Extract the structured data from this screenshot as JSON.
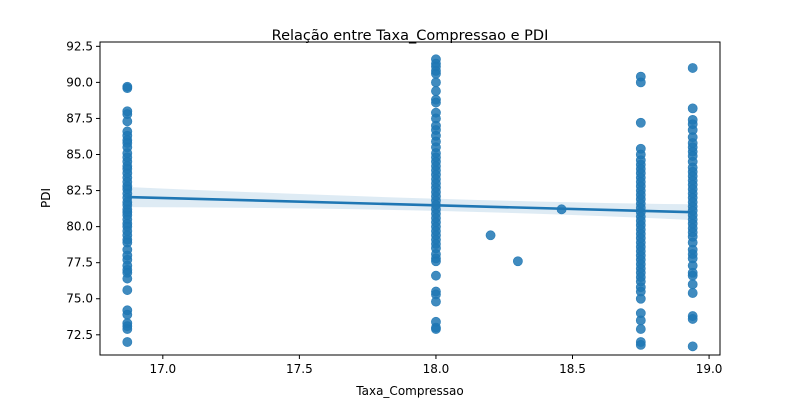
{
  "chart_data": {
    "type": "scatter",
    "title": "Relação entre Taxa_Compressao e PDI",
    "xlabel": "Taxa_Compressao",
    "ylabel": "PDI",
    "xlim": [
      16.77,
      19.04
    ],
    "ylim": [
      71.1,
      92.8
    ],
    "xticks": [
      "17.0",
      "17.5",
      "18.0",
      "18.5",
      "19.0"
    ],
    "yticks": [
      "72.5",
      "75.0",
      "77.5",
      "80.0",
      "82.5",
      "85.0",
      "87.5",
      "90.0",
      "92.5"
    ],
    "grid": false,
    "point_color": "#1f77b4",
    "regression": {
      "x": [
        16.87,
        18.94
      ],
      "y": [
        82.05,
        81.0
      ],
      "ci_upper": [
        82.75,
        81.55
      ],
      "ci_lower": [
        81.35,
        80.45
      ],
      "ci_mid_upper": 81.75,
      "ci_mid_lower": 81.3,
      "ci_mid_x": 18.05
    },
    "series": [
      {
        "x": 16.87,
        "y": [
          89.7,
          89.6,
          88.0,
          87.8,
          87.3,
          86.6,
          86.3,
          86.0,
          85.8,
          85.5,
          85.1,
          84.8,
          84.5,
          84.2,
          84.0,
          83.7,
          83.4,
          83.1,
          82.8,
          82.6,
          82.3,
          82.0,
          81.7,
          81.5,
          81.2,
          81.0,
          80.8,
          80.5,
          80.2,
          80.0,
          79.7,
          79.4,
          79.1,
          78.9,
          78.4,
          78.0,
          77.7,
          77.3,
          77.0,
          76.8,
          76.4,
          75.6,
          74.2,
          73.9,
          73.3,
          73.1,
          72.9,
          72.0
        ]
      },
      {
        "x": 18.0,
        "y": [
          91.6,
          91.3,
          91.1,
          90.8,
          90.6,
          90.0,
          89.4,
          88.8,
          88.6,
          87.9,
          87.5,
          87.0,
          86.7,
          86.3,
          85.9,
          85.5,
          85.1,
          84.8,
          84.5,
          84.2,
          83.9,
          83.6,
          83.3,
          83.0,
          82.7,
          82.4,
          82.1,
          81.8,
          81.5,
          81.2,
          80.9,
          80.6,
          80.3,
          80.0,
          79.7,
          79.4,
          79.1,
          78.8,
          78.5,
          78.1,
          77.8,
          77.6,
          76.6,
          75.5,
          75.3,
          74.8,
          73.4,
          73.0,
          72.9
        ]
      },
      {
        "x": 18.2,
        "y": [
          79.4
        ]
      },
      {
        "x": 18.3,
        "y": [
          77.6
        ]
      },
      {
        "x": 18.46,
        "y": [
          81.2
        ]
      },
      {
        "x": 18.75,
        "y": [
          90.4,
          90.0,
          87.2,
          85.4,
          85.0,
          84.6,
          84.3,
          84.0,
          83.7,
          83.4,
          83.1,
          82.8,
          82.5,
          82.2,
          81.9,
          81.6,
          81.3,
          81.0,
          80.7,
          80.4,
          80.1,
          79.8,
          79.5,
          79.2,
          78.9,
          78.6,
          78.3,
          78.0,
          77.7,
          77.4,
          77.1,
          76.8,
          76.5,
          76.2,
          75.8,
          75.5,
          75.0,
          74.0,
          73.5,
          72.9,
          72.0,
          71.8
        ]
      },
      {
        "x": 18.94,
        "y": [
          91.0,
          88.2,
          87.4,
          87.1,
          86.7,
          86.2,
          85.8,
          85.5,
          85.2,
          84.9,
          84.5,
          84.1,
          83.8,
          83.5,
          83.2,
          82.9,
          82.6,
          82.3,
          82.0,
          81.7,
          81.4,
          81.1,
          80.8,
          80.5,
          80.2,
          79.9,
          79.6,
          79.3,
          78.9,
          78.4,
          78.1,
          77.8,
          77.3,
          76.8,
          76.6,
          76.0,
          75.4,
          73.8,
          73.6,
          71.7
        ]
      }
    ]
  }
}
